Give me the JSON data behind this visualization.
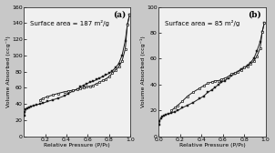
{
  "panel_a": {
    "label": "(a)",
    "surface_area_text": "Surface area = 187 m²/g",
    "ylabel": "Volume Absorbed (ccg⁻¹)",
    "xlabel": "Relative Pressure (P/P₀)",
    "xlim": [
      0.0,
      1.0
    ],
    "ylim": [
      0,
      160
    ],
    "yticks": [
      0,
      20,
      40,
      60,
      80,
      100,
      120,
      140,
      160
    ],
    "xticks": [
      0.2,
      0.4,
      0.6,
      0.8,
      1.0
    ],
    "adsorption_x": [
      0.005,
      0.01,
      0.02,
      0.03,
      0.05,
      0.07,
      0.09,
      0.12,
      0.15,
      0.18,
      0.22,
      0.27,
      0.32,
      0.38,
      0.42,
      0.46,
      0.5,
      0.53,
      0.56,
      0.59,
      0.62,
      0.65,
      0.68,
      0.71,
      0.74,
      0.77,
      0.8,
      0.83,
      0.86,
      0.89,
      0.92,
      0.95,
      0.97,
      0.99
    ],
    "adsorption_y": [
      26,
      30,
      33,
      35,
      36,
      37,
      38,
      39,
      40,
      41,
      43,
      45,
      47,
      50,
      53,
      56,
      58,
      61,
      63,
      65,
      67,
      68,
      70,
      72,
      74,
      76,
      78,
      81,
      85,
      90,
      100,
      118,
      138,
      150
    ],
    "desorption_x": [
      0.99,
      0.97,
      0.95,
      0.92,
      0.89,
      0.86,
      0.83,
      0.8,
      0.77,
      0.74,
      0.71,
      0.68,
      0.65,
      0.62,
      0.59,
      0.56,
      0.53,
      0.5,
      0.46,
      0.42,
      0.38,
      0.32,
      0.27,
      0.22,
      0.18,
      0.15
    ],
    "desorption_y": [
      150,
      138,
      108,
      93,
      86,
      82,
      78,
      74,
      71,
      69,
      67,
      65,
      63,
      62,
      61,
      60,
      59,
      58,
      57,
      56,
      55,
      53,
      51,
      49,
      47,
      45
    ]
  },
  "panel_b": {
    "label": "(b)",
    "surface_area_text": "Surface area = 85 m²/g",
    "ylabel": "Volume Absorbed (ccg⁻¹)",
    "xlabel": "Relative Pressure (P/P₀)",
    "xlim": [
      0.0,
      1.0
    ],
    "ylim": [
      0,
      100
    ],
    "yticks": [
      0,
      20,
      40,
      60,
      80,
      100
    ],
    "xticks": [
      0.0,
      0.2,
      0.4,
      0.6,
      0.8,
      1.0
    ],
    "adsorption_x": [
      0.005,
      0.01,
      0.02,
      0.03,
      0.05,
      0.07,
      0.09,
      0.12,
      0.15,
      0.18,
      0.22,
      0.27,
      0.32,
      0.38,
      0.42,
      0.46,
      0.5,
      0.53,
      0.56,
      0.59,
      0.62,
      0.65,
      0.68,
      0.71,
      0.74,
      0.77,
      0.8,
      0.83,
      0.86,
      0.89,
      0.92,
      0.95,
      0.97,
      0.99
    ],
    "adsorption_y": [
      9,
      12,
      14,
      15,
      16,
      17,
      17.5,
      18,
      19,
      20,
      22,
      24,
      26,
      29,
      31,
      34,
      36,
      38,
      40,
      42,
      43,
      45,
      47,
      48,
      50,
      52,
      53,
      55,
      57,
      60,
      66,
      73,
      81,
      88
    ],
    "desorption_x": [
      0.99,
      0.97,
      0.95,
      0.92,
      0.89,
      0.86,
      0.83,
      0.8,
      0.77,
      0.74,
      0.71,
      0.68,
      0.65,
      0.62,
      0.59,
      0.56,
      0.53,
      0.5,
      0.46,
      0.42,
      0.38,
      0.32,
      0.27,
      0.22,
      0.18,
      0.15,
      0.12
    ],
    "desorption_y": [
      88,
      81,
      68,
      62,
      58,
      56,
      54,
      53,
      51,
      50,
      49,
      48,
      46,
      45,
      44,
      43,
      43,
      42,
      41,
      39,
      37,
      34,
      31,
      27,
      24,
      22,
      20
    ]
  },
  "line_color": "#1a1a1a",
  "marker": "s",
  "adsorption_markersize": 2.0,
  "desorption_markersize": 2.0,
  "line_width": 0.7,
  "bg_color": "#f0f0f0",
  "fig_bg_color": "#c8c8c8",
  "font_size_label": 4.5,
  "font_size_annot": 6.5,
  "font_size_tick": 4.5,
  "font_size_surface": 5.0
}
